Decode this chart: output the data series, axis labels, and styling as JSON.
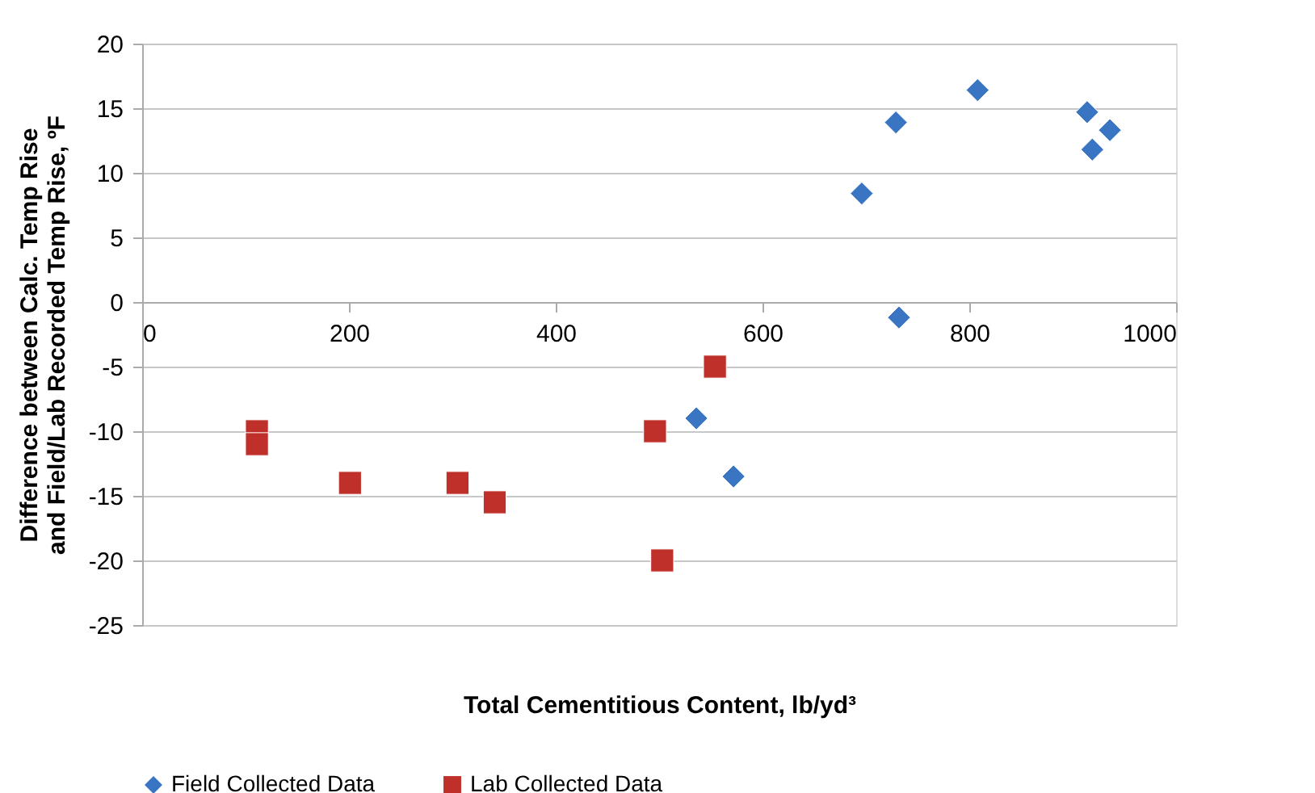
{
  "chart_data": {
    "type": "scatter",
    "xlabel": "Total Cementitious Content, lb/yd³",
    "ylabel": "Difference between Calc. Temp Rise and Field/Lab Recorded Temp Rise, ºF",
    "xlim": [
      0,
      1000
    ],
    "xticks": [
      0,
      200,
      400,
      600,
      800,
      1000
    ],
    "ylim": [
      -25,
      20
    ],
    "yticks": [
      -25,
      -20,
      -15,
      -10,
      -5,
      0,
      5,
      10,
      15,
      20
    ],
    "grid": "y",
    "legend": "bottom",
    "series": [
      {
        "name": "Field Collected Data",
        "color": "#3a75c4",
        "marker": "diamond",
        "x": [
          808,
          729,
          696,
          914,
          936,
          919,
          732,
          536,
          572
        ],
        "values": [
          16.4,
          13.9,
          8.4,
          14.7,
          13.3,
          11.8,
          -1.2,
          -9.0,
          -13.5
        ]
      },
      {
        "name": "Lab Collected Data",
        "color": "#c0302a",
        "marker": "square",
        "x": [
          111,
          111,
          201,
          305,
          341,
          496,
          503,
          554
        ],
        "values": [
          -10.0,
          -11.0,
          -14.0,
          -14.0,
          -15.5,
          -10.0,
          -20.0,
          -5.0
        ]
      }
    ]
  }
}
